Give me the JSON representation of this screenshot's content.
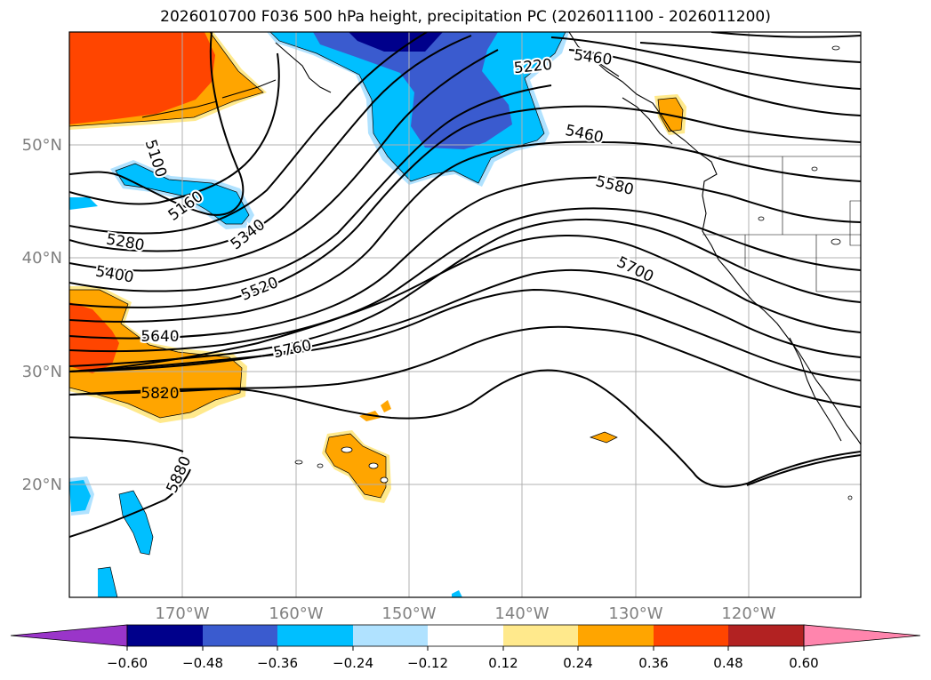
{
  "title": "2026010700 F036 500 hPa height, precipitation PC (2026011100 - 2026011200)",
  "map": {
    "lat_labels": [
      "50°N",
      "40°N",
      "30°N",
      "20°N"
    ],
    "lon_labels": [
      "170°W",
      "160°W",
      "150°W",
      "140°W",
      "130°W",
      "120°W"
    ],
    "contour_labels": [
      "5100",
      "5160",
      "5220",
      "5280",
      "5340",
      "5400",
      "5460",
      "5520",
      "5580",
      "5640",
      "5700",
      "5760",
      "5820",
      "5880"
    ],
    "partial_label": "5460"
  },
  "colorbar": {
    "ticks": [
      "−0.60",
      "−0.48",
      "−0.36",
      "−0.24",
      "−0.12",
      "0.12",
      "0.24",
      "0.36",
      "0.48",
      "0.60"
    ],
    "colors": [
      "#9a35c9",
      "#00008b",
      "#3a5bcf",
      "#00bfff",
      "#b0e2ff",
      "#ffffff",
      "#ffe98c",
      "#ffa500",
      "#ff4500",
      "#b22222",
      "#ff85ad"
    ]
  }
}
